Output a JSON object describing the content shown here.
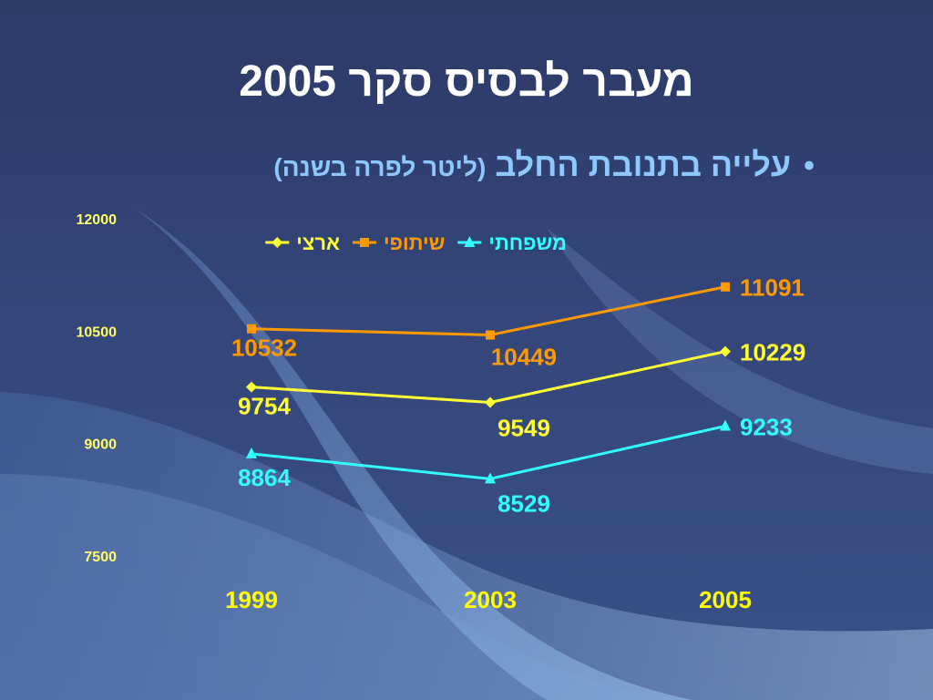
{
  "slide": {
    "title": "מעבר לבסיס סקר 2005",
    "bullet_main": "עלייה בתנובת החלב",
    "bullet_sub": "(ליטר לפרה בשנה)",
    "bullet_symbol": "•"
  },
  "chart_data": {
    "type": "line",
    "categories": [
      "1999",
      "2003",
      "2005"
    ],
    "ylim": [
      7500,
      12000
    ],
    "yticks": [
      "12000",
      "10500",
      "9000",
      "7500"
    ],
    "legend_position": "top",
    "grid": false,
    "series": [
      {
        "name": "ארצי",
        "values": [
          9754,
          9549,
          10229
        ],
        "labels": [
          "9754",
          "9549",
          "10229"
        ],
        "color": "#ffff33",
        "marker": "diamond"
      },
      {
        "name": "שיתופי",
        "values": [
          10532,
          10449,
          11091
        ],
        "labels": [
          "10532",
          "10449",
          "11091"
        ],
        "color": "#ff9900",
        "marker": "square"
      },
      {
        "name": "משפחתי",
        "values": [
          8864,
          8529,
          9233
        ],
        "labels": [
          "8864",
          "8529",
          "9233"
        ],
        "color": "#33ffff",
        "marker": "triangle"
      }
    ]
  },
  "colors": {
    "title": "#ffffff",
    "bullet": "#8ec8ff",
    "axis_ticks": "#ffff66",
    "category_ticks": "#ffff00"
  }
}
